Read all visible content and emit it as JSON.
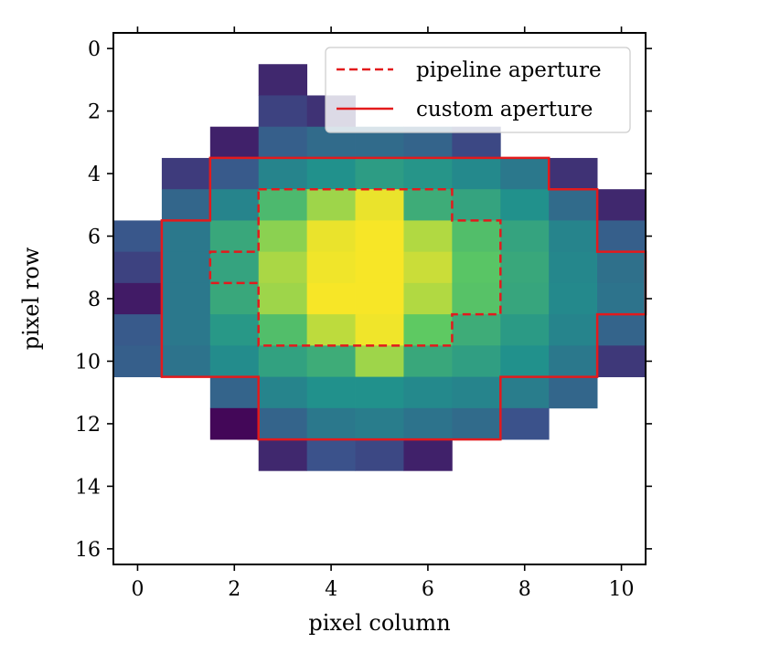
{
  "chart_data": {
    "type": "heatmap",
    "xlabel": "pixel column",
    "ylabel": "pixel row",
    "xlim": [
      -0.5,
      10.5
    ],
    "ylim": [
      16.5,
      -0.5
    ],
    "xticks": [
      0,
      2,
      4,
      6,
      8,
      10
    ],
    "yticks": [
      0,
      2,
      4,
      6,
      8,
      10,
      12,
      14,
      16
    ],
    "xtick_labels": [
      "0",
      "2",
      "4",
      "6",
      "8",
      "10"
    ],
    "ytick_labels": [
      "0",
      "2",
      "4",
      "6",
      "8",
      "10",
      "12",
      "14",
      "16"
    ],
    "colormap": "viridis",
    "value_range": [
      0,
      1
    ],
    "grid_row_start": 1,
    "grid_col_start": 0,
    "grid": [
      [
        null,
        null,
        null,
        0.12,
        null,
        null,
        null,
        null,
        null,
        null,
        null
      ],
      [
        null,
        null,
        null,
        0.2,
        0.15,
        null,
        null,
        null,
        null,
        null,
        null
      ],
      [
        null,
        null,
        0.1,
        0.3,
        0.35,
        0.35,
        0.32,
        0.22,
        null,
        null,
        null
      ],
      [
        null,
        0.18,
        0.28,
        0.45,
        0.5,
        0.55,
        0.52,
        0.47,
        0.4,
        0.15,
        null
      ],
      [
        null,
        0.33,
        0.45,
        0.68,
        0.85,
        0.97,
        0.62,
        0.58,
        0.5,
        0.35,
        0.12
      ],
      [
        0.27,
        0.4,
        0.6,
        0.82,
        0.97,
        0.99,
        0.88,
        0.7,
        0.58,
        0.45,
        0.3
      ],
      [
        0.2,
        0.4,
        0.58,
        0.87,
        0.98,
        0.99,
        0.92,
        0.73,
        0.6,
        0.46,
        0.37
      ],
      [
        0.08,
        0.4,
        0.6,
        0.85,
        0.99,
        0.99,
        0.88,
        0.72,
        0.59,
        0.47,
        0.38
      ],
      [
        0.28,
        0.4,
        0.53,
        0.7,
        0.9,
        0.98,
        0.75,
        0.62,
        0.54,
        0.45,
        0.32
      ],
      [
        0.3,
        0.38,
        0.48,
        0.57,
        0.62,
        0.85,
        0.6,
        0.56,
        0.5,
        0.4,
        0.17
      ],
      [
        null,
        null,
        0.32,
        0.45,
        0.5,
        0.5,
        0.47,
        0.45,
        0.42,
        0.33,
        null
      ],
      [
        null,
        null,
        0.02,
        0.32,
        0.4,
        0.42,
        0.38,
        0.35,
        0.25,
        null,
        null
      ],
      [
        null,
        null,
        null,
        0.12,
        0.25,
        0.22,
        0.1,
        null,
        null,
        null,
        null
      ]
    ],
    "pipeline_aperture_outline": [
      [
        2.5,
        4.5
      ],
      [
        6.5,
        4.5
      ],
      [
        6.5,
        5.5
      ],
      [
        7.5,
        5.5
      ],
      [
        7.5,
        8.5
      ],
      [
        6.5,
        8.5
      ],
      [
        6.5,
        9.5
      ],
      [
        2.5,
        9.5
      ],
      [
        2.5,
        7.5
      ],
      [
        1.5,
        7.5
      ],
      [
        1.5,
        6.5
      ],
      [
        2.5,
        6.5
      ]
    ],
    "custom_aperture_outline": [
      [
        1.5,
        3.5
      ],
      [
        8.5,
        3.5
      ],
      [
        8.5,
        4.5
      ],
      [
        9.5,
        4.5
      ],
      [
        9.5,
        6.5
      ],
      [
        10.5,
        6.5
      ],
      [
        10.5,
        8.5
      ],
      [
        9.5,
        8.5
      ],
      [
        9.5,
        10.5
      ],
      [
        7.5,
        10.5
      ],
      [
        7.5,
        12.5
      ],
      [
        2.5,
        12.5
      ],
      [
        2.5,
        10.5
      ],
      [
        0.5,
        10.5
      ],
      [
        0.5,
        5.5
      ],
      [
        1.5,
        5.5
      ]
    ],
    "legend": {
      "position": "top-right",
      "entries": [
        {
          "label": "pipeline aperture",
          "style": "dashed",
          "color": "#e31a1c"
        },
        {
          "label": "custom aperture",
          "style": "solid",
          "color": "#e31a1c"
        }
      ]
    },
    "aperture_color": "#e31a1c"
  }
}
